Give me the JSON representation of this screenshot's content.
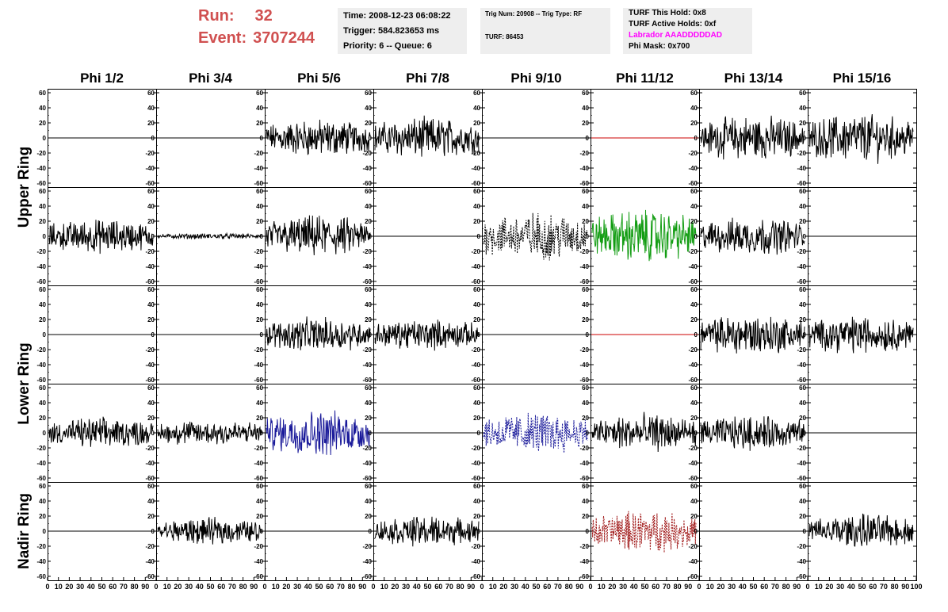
{
  "header": {
    "run_label": "Run:",
    "run_value": "32",
    "event_label": "Event:",
    "event_value": "3707244",
    "time": "Time: 2008-12-23 06:08:22",
    "trigger": "Trigger: 584.823653 ms",
    "priority": "Priority: 6 -- Queue: 6",
    "trig_num": "Trig Num: 20908 -- Trig Type: RF",
    "turf": "TURF: 86453",
    "turf_this_hold": "TURF This Hold: 0x8",
    "turf_active_holds": "TURF Active Holds: 0xf",
    "labrador": "Labrador AAADDDDDAD",
    "phi_mask": "Phi Mask: 0x700"
  },
  "chart_data": {
    "type": "line",
    "columns": [
      "Phi 1/2",
      "Phi 3/4",
      "Phi 5/6",
      "Phi 7/8",
      "Phi 9/10",
      "Phi 11/12",
      "Phi 13/14",
      "Phi 15/16"
    ],
    "row_groups": [
      "Upper Ring",
      "Lower Ring",
      "Nadir Ring"
    ],
    "ylim": [
      -60,
      60
    ],
    "ytick_labels": [
      "60",
      "40",
      "20",
      "0",
      "-20",
      "-40",
      "-60"
    ],
    "xlim": [
      0,
      100
    ],
    "xtick_labels": [
      "0",
      "10",
      "20",
      "30",
      "40",
      "50",
      "60",
      "70",
      "80",
      "90",
      "100"
    ],
    "colors": {
      "black": "#000000",
      "red": "#cc0000",
      "green": "#139d13",
      "blue": "#1a1a9a",
      "dark_red": "#a01818"
    },
    "panels": [
      [
        "flat",
        "flat",
        "noise:20",
        "noise:22",
        "flat",
        "flat-red",
        "noise:24",
        "noise:26"
      ],
      [
        "noise:18",
        "noise:3",
        "noise:22",
        "flat",
        "noise-dotted:26",
        "noise-green:28",
        "noise:20",
        "flat"
      ],
      [
        "flat",
        "flat",
        "noise:18",
        "noise:16",
        "flat",
        "flat-red",
        "noise:22",
        "noise:20"
      ],
      [
        "noise:16",
        "noise:14",
        "noise-blue:24",
        "flat",
        "noise-dotted-blue:22",
        "noise:20",
        "noise:18",
        "flat"
      ],
      [
        "flat",
        "noise:14",
        "flat",
        "noise:16",
        "flat",
        "noise-dotted-darkred:22",
        "flat",
        "noise:18"
      ]
    ]
  }
}
